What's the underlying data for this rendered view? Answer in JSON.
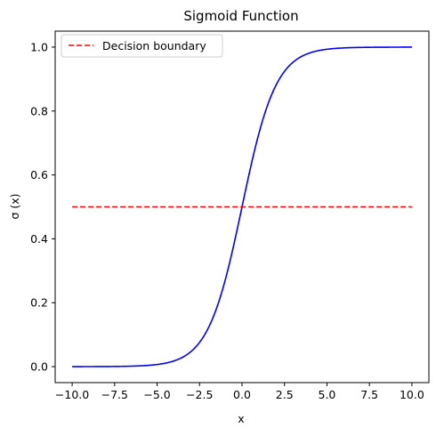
{
  "chart_data": {
    "type": "line",
    "title": "Sigmoid Function",
    "xlabel": "x",
    "ylabel": "σ (x)",
    "xlim": [
      -11,
      11
    ],
    "ylim": [
      -0.05,
      1.05
    ],
    "x_ticks": [
      -10.0,
      -7.5,
      -5.0,
      -2.5,
      0.0,
      2.5,
      5.0,
      7.5,
      10.0
    ],
    "x_tick_labels": [
      "−10.0",
      "−7.5",
      "−5.0",
      "−2.5",
      "0.0",
      "2.5",
      "5.0",
      "7.5",
      "10.0"
    ],
    "y_ticks": [
      0.0,
      0.2,
      0.4,
      0.6,
      0.8,
      1.0
    ],
    "y_tick_labels": [
      "0.0",
      "0.2",
      "0.4",
      "0.6",
      "0.8",
      "1.0"
    ],
    "grid": false,
    "legend_position": "top-left",
    "series": [
      {
        "color": "#0000ff",
        "style": "solid",
        "x": [
          -10,
          -9,
          -8,
          -7,
          -6,
          -5,
          -4,
          -3,
          -2.5,
          -2,
          -1.5,
          -1,
          -0.5,
          0,
          0.5,
          1,
          1.5,
          2,
          2.5,
          3,
          4,
          5,
          6,
          7,
          8,
          9,
          10
        ],
        "y": [
          4.54e-05,
          0.000123,
          0.000335,
          0.000911,
          0.00247,
          0.00669,
          0.018,
          0.0474,
          0.0759,
          0.119,
          0.182,
          0.269,
          0.378,
          0.5,
          0.622,
          0.731,
          0.818,
          0.881,
          0.924,
          0.953,
          0.982,
          0.993,
          0.998,
          0.999,
          0.9997,
          0.9999,
          0.99995
        ]
      },
      {
        "name": "Decision boundary",
        "color": "#ff0000",
        "style": "dashed",
        "x": [
          -10,
          10
        ],
        "y": [
          0.5,
          0.5
        ]
      }
    ]
  }
}
